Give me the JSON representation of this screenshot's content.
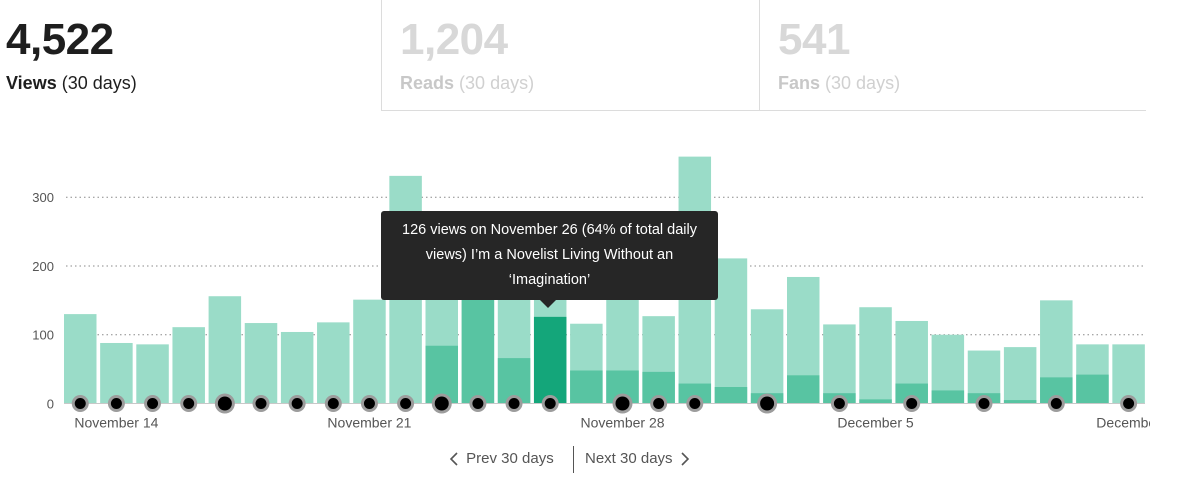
{
  "stats": {
    "views": {
      "number": "4,522",
      "label": "Views",
      "period": "(30 days)"
    },
    "reads": {
      "number": "1,204",
      "label": "Reads",
      "period": "(30 days)"
    },
    "fans": {
      "number": "541",
      "label": "Fans",
      "period": "(30 days)"
    }
  },
  "colors": {
    "bar_light": "#9adcc8",
    "bar_dark": "#58c4a2",
    "bar_highlight": "#14a67a",
    "dot": "#000000",
    "dot_ring": "#9c9c9c",
    "grid": "#8a8a8a",
    "axis_text": "#555555"
  },
  "tooltip": {
    "text": "126 views on November 26 (64% of total daily views) I’m a Novelist Living Without an ‘Imagination’"
  },
  "pager": {
    "prev_label": "Prev 30 days",
    "next_label": "Next 30 days"
  },
  "chart_data": {
    "type": "bar",
    "title": "",
    "xlabel": "",
    "ylabel": "",
    "ylim": [
      0,
      360
    ],
    "yticks": [
      0,
      100,
      200,
      300
    ],
    "grid": true,
    "x_tick_labels": [
      "November 14",
      "November 21",
      "November 28",
      "December 5",
      "December"
    ],
    "x_tick_dates": [
      "Nov 14",
      "Nov 21",
      "Nov 28",
      "Dec 5",
      "Dec 12"
    ],
    "categories": [
      "Nov 13",
      "Nov 14",
      "Nov 15",
      "Nov 16",
      "Nov 17",
      "Nov 18",
      "Nov 19",
      "Nov 20",
      "Nov 21",
      "Nov 22",
      "Nov 23",
      "Nov 24",
      "Nov 25",
      "Nov 26",
      "Nov 27",
      "Nov 28",
      "Nov 29",
      "Nov 30",
      "Dec 1",
      "Dec 2",
      "Dec 3",
      "Dec 4",
      "Dec 5",
      "Dec 6",
      "Dec 7",
      "Dec 8",
      "Dec 9",
      "Dec 10",
      "Dec 11",
      "Dec 12",
      "Dec 13"
    ],
    "series": [
      {
        "values": [
          130,
          88,
          86,
          111,
          156,
          117,
          104,
          118,
          151,
          331,
          197,
          197,
          197,
          197,
          116,
          151,
          127,
          359,
          211,
          137,
          184,
          115,
          140,
          120,
          100,
          77,
          82,
          150,
          86,
          86,
          86
        ]
      },
      {
        "values": [
          0,
          0,
          0,
          0,
          0,
          0,
          0,
          0,
          0,
          0,
          84,
          156,
          66,
          126,
          48,
          48,
          46,
          29,
          24,
          15,
          41,
          15,
          6,
          29,
          19,
          15,
          5,
          38,
          42,
          0,
          5
        ]
      }
    ],
    "highlight_category": "Nov 26",
    "markers": [
      {
        "date": "Nov 13",
        "size": "small"
      },
      {
        "date": "Nov 14",
        "size": "small"
      },
      {
        "date": "Nov 15",
        "size": "small"
      },
      {
        "date": "Nov 16",
        "size": "small"
      },
      {
        "date": "Nov 17",
        "size": "large"
      },
      {
        "date": "Nov 18",
        "size": "small"
      },
      {
        "date": "Nov 19",
        "size": "small"
      },
      {
        "date": "Nov 20",
        "size": "small"
      },
      {
        "date": "Nov 21",
        "size": "small"
      },
      {
        "date": "Nov 22",
        "size": "small"
      },
      {
        "date": "Nov 23",
        "size": "large"
      },
      {
        "date": "Nov 24",
        "size": "small"
      },
      {
        "date": "Nov 25",
        "size": "small"
      },
      {
        "date": "Nov 26",
        "size": "small"
      },
      {
        "date": "Nov 28",
        "size": "large"
      },
      {
        "date": "Nov 29",
        "size": "small"
      },
      {
        "date": "Nov 30",
        "size": "small"
      },
      {
        "date": "Dec 2",
        "size": "large"
      },
      {
        "date": "Dec 4",
        "size": "small"
      },
      {
        "date": "Dec 6",
        "size": "small"
      },
      {
        "date": "Dec 8",
        "size": "small"
      },
      {
        "date": "Dec 10",
        "size": "small"
      },
      {
        "date": "Dec 12",
        "size": "small"
      }
    ]
  }
}
